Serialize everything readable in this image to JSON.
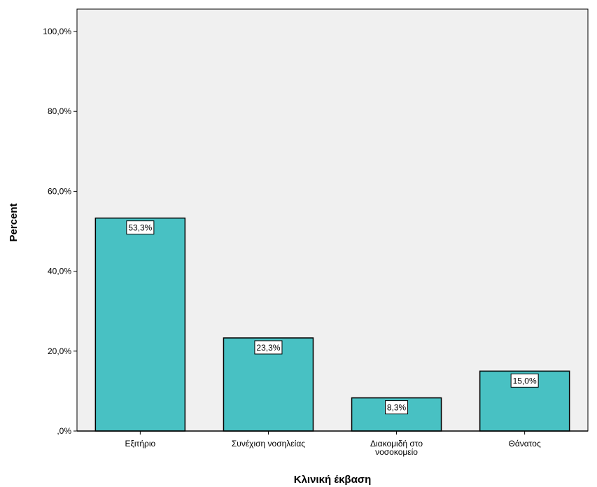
{
  "chart_data": {
    "type": "bar",
    "title": "",
    "xlabel": "Κλινική έκβαση",
    "ylabel": "Percent",
    "categories": [
      [
        "Εξιτήριο"
      ],
      [
        "Συνέχιση νοσηλείας"
      ],
      [
        "Διακομιδή στο",
        "νοσοκομείο"
      ],
      [
        "Θάνατος"
      ]
    ],
    "values": [
      53.3,
      23.3,
      8.3,
      15.0
    ],
    "data_labels": [
      "53,3%",
      "23,3%",
      "8,3%",
      "15,0%"
    ],
    "ylim": [
      0,
      105
    ],
    "yticks": [
      0,
      20,
      40,
      60,
      80,
      100
    ],
    "ytick_labels": [
      ",0%",
      "20,0%",
      "40,0%",
      "60,0%",
      "80,0%",
      "100,0%"
    ],
    "grid": false,
    "colors": {
      "bar_fill": "#48c1c3",
      "plot_background": "#f0f0f0",
      "bar_stroke": "#000000"
    }
  }
}
